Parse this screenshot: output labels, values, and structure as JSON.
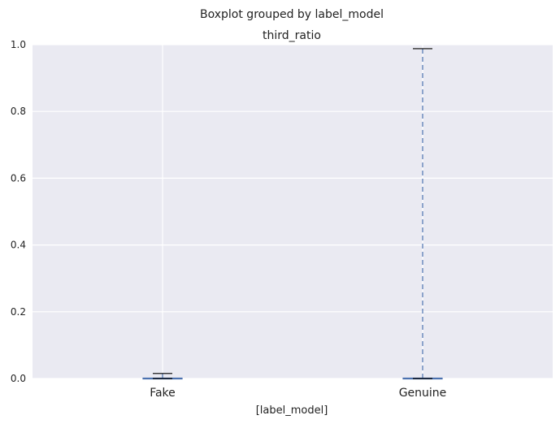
{
  "chart_data": {
    "type": "boxplot",
    "suptitle": "Boxplot grouped by label_model",
    "title": "third_ratio",
    "xlabel": "[label_model]",
    "ylabel": "",
    "ylim": [
      0,
      1
    ],
    "yticks": [
      0.0,
      0.2,
      0.4,
      0.6,
      0.8,
      1.0
    ],
    "ytick_labels": [
      "0.0",
      "0.2",
      "0.4",
      "0.6",
      "0.8",
      "1.0"
    ],
    "grid": true,
    "categories": [
      "Fake",
      "Genuine"
    ],
    "boxes": [
      {
        "category": "Fake",
        "whisker_low": 0.0,
        "q1": 0.0,
        "median": 0.0,
        "q3": 0.0,
        "whisker_high": 0.015
      },
      {
        "category": "Genuine",
        "whisker_low": 0.0,
        "q1": 0.0,
        "median": 0.0,
        "q3": 0.0,
        "whisker_high": 0.988
      }
    ],
    "colors": {
      "background": "#eaeaf2",
      "grid": "#ffffff",
      "box": "#4c72b0",
      "median": "#4c72b0",
      "whisker": "#4c72b0",
      "cap": "#000000"
    }
  }
}
